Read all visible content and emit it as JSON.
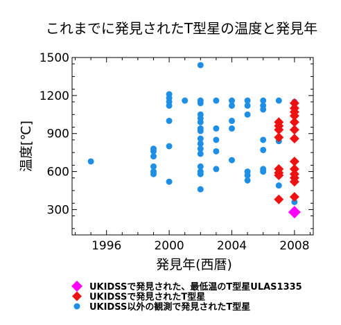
{
  "chart_data": {
    "type": "scatter",
    "title": "これまでに発見されたT型星の温度と発見年",
    "xlabel": "発見年(西暦)",
    "ylabel": "温度[℃]",
    "xlim": [
      1993.8,
      2009.2
    ],
    "ylim": [
      100,
      1500
    ],
    "x_ticks": [
      1996,
      2000,
      2004,
      2008
    ],
    "y_ticks": [
      300,
      600,
      900,
      1200,
      1500
    ],
    "x_tick_labels": [
      "1996",
      "2000",
      "2004",
      "2008"
    ],
    "y_tick_labels": [
      "300",
      "600",
      "900",
      "1200",
      "1500"
    ],
    "grid": false,
    "legend_position": "bottom",
    "series": [
      {
        "name": "UKIDSS以外の観測で発見されたT型星",
        "marker": "circle",
        "color": "#1f8fe6",
        "points": [
          {
            "x": 1995,
            "y": 680
          },
          {
            "x": 1999,
            "y": 780
          },
          {
            "x": 1999,
            "y": 760
          },
          {
            "x": 1999,
            "y": 720
          },
          {
            "x": 1999,
            "y": 640
          },
          {
            "x": 1999,
            "y": 600
          },
          {
            "x": 1999,
            "y": 580
          },
          {
            "x": 2000,
            "y": 1210
          },
          {
            "x": 2000,
            "y": 1180
          },
          {
            "x": 2000,
            "y": 1150
          },
          {
            "x": 2000,
            "y": 1120
          },
          {
            "x": 2000,
            "y": 1000
          },
          {
            "x": 2000,
            "y": 800
          },
          {
            "x": 2000,
            "y": 520
          },
          {
            "x": 2001,
            "y": 1160
          },
          {
            "x": 2002,
            "y": 1440
          },
          {
            "x": 2002,
            "y": 1160
          },
          {
            "x": 2002,
            "y": 1140
          },
          {
            "x": 2002,
            "y": 1050
          },
          {
            "x": 2002,
            "y": 1020
          },
          {
            "x": 2002,
            "y": 990
          },
          {
            "x": 2002,
            "y": 940
          },
          {
            "x": 2002,
            "y": 920
          },
          {
            "x": 2002,
            "y": 860
          },
          {
            "x": 2002,
            "y": 820
          },
          {
            "x": 2002,
            "y": 780
          },
          {
            "x": 2002,
            "y": 740
          },
          {
            "x": 2002,
            "y": 640
          },
          {
            "x": 2002,
            "y": 600
          },
          {
            "x": 2002,
            "y": 580
          },
          {
            "x": 2002,
            "y": 460
          },
          {
            "x": 2003,
            "y": 1160
          },
          {
            "x": 2003,
            "y": 940
          },
          {
            "x": 2003,
            "y": 850
          },
          {
            "x": 2003,
            "y": 760
          },
          {
            "x": 2003,
            "y": 620
          },
          {
            "x": 2004,
            "y": 1160
          },
          {
            "x": 2004,
            "y": 1120
          },
          {
            "x": 2004,
            "y": 1000
          },
          {
            "x": 2004,
            "y": 940
          },
          {
            "x": 2004,
            "y": 690
          },
          {
            "x": 2005,
            "y": 1160
          },
          {
            "x": 2005,
            "y": 1120
          },
          {
            "x": 2005,
            "y": 1050
          },
          {
            "x": 2005,
            "y": 600
          },
          {
            "x": 2005,
            "y": 570
          },
          {
            "x": 2005,
            "y": 530
          },
          {
            "x": 2006,
            "y": 1160
          },
          {
            "x": 2006,
            "y": 1120
          },
          {
            "x": 2006,
            "y": 1090
          },
          {
            "x": 2006,
            "y": 850
          },
          {
            "x": 2006,
            "y": 770
          },
          {
            "x": 2006,
            "y": 620
          },
          {
            "x": 2006,
            "y": 600
          },
          {
            "x": 2007,
            "y": 1160
          },
          {
            "x": 2007,
            "y": 870
          },
          {
            "x": 2007,
            "y": 840
          },
          {
            "x": 2007,
            "y": 600
          },
          {
            "x": 2007,
            "y": 490
          },
          {
            "x": 2008,
            "y": 1150
          },
          {
            "x": 2008,
            "y": 360
          }
        ]
      },
      {
        "name": "UKIDSSで発見されたT型星",
        "marker": "diamond",
        "color": "#ee1111",
        "points": [
          {
            "x": 2007,
            "y": 990
          },
          {
            "x": 2007,
            "y": 960
          },
          {
            "x": 2007,
            "y": 930
          },
          {
            "x": 2007,
            "y": 870
          },
          {
            "x": 2007,
            "y": 620
          },
          {
            "x": 2007,
            "y": 590
          },
          {
            "x": 2007,
            "y": 570
          },
          {
            "x": 2007,
            "y": 380
          },
          {
            "x": 2008,
            "y": 1140
          },
          {
            "x": 2008,
            "y": 1100
          },
          {
            "x": 2008,
            "y": 1070
          },
          {
            "x": 2008,
            "y": 1040
          },
          {
            "x": 2008,
            "y": 990
          },
          {
            "x": 2008,
            "y": 930
          },
          {
            "x": 2008,
            "y": 860
          },
          {
            "x": 2008,
            "y": 680
          },
          {
            "x": 2008,
            "y": 620
          },
          {
            "x": 2008,
            "y": 580
          },
          {
            "x": 2008,
            "y": 550
          },
          {
            "x": 2008,
            "y": 520
          },
          {
            "x": 2008,
            "y": 400
          }
        ]
      },
      {
        "name": "UKIDSSで発見された、最低温のT型星ULAS1335",
        "marker": "diamond",
        "color": "#ff00ff",
        "points": [
          {
            "x": 2008,
            "y": 280
          }
        ]
      }
    ],
    "legend_order": [
      2,
      1,
      0
    ]
  }
}
